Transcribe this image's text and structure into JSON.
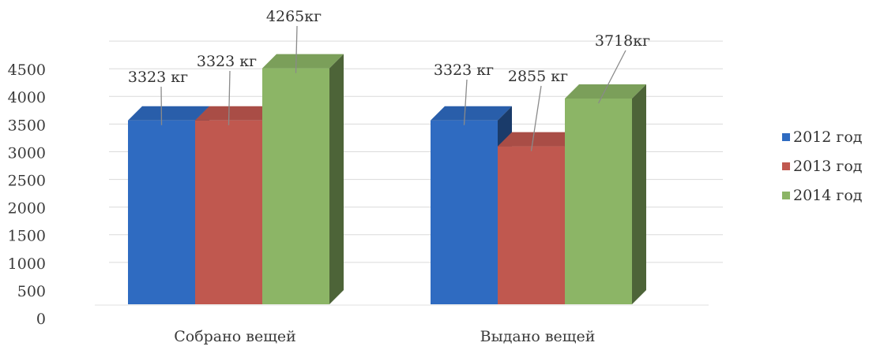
{
  "chart_data": {
    "type": "bar",
    "title": "",
    "xlabel": "",
    "ylabel": "",
    "ylim": [
      0,
      4500
    ],
    "yticks": [
      0,
      500,
      1000,
      1500,
      2000,
      2500,
      3000,
      3500,
      4000,
      4500
    ],
    "grid": true,
    "legend_position": "right",
    "style": "3d-clustered-column",
    "categories": [
      "Собрано вещей",
      "Выдано вещей"
    ],
    "series": [
      {
        "name": "2012 год",
        "color": "#2f6bc1",
        "values": [
          3323,
          3323
        ],
        "data_labels": [
          "3323 кг",
          "3323 кг"
        ]
      },
      {
        "name": "2013 год",
        "color": "#c0584f",
        "values": [
          3323,
          2855
        ],
        "data_labels": [
          "3323 кг",
          "2855 кг"
        ]
      },
      {
        "name": "2014 год",
        "color": "#8cb566",
        "values": [
          4265,
          3718
        ],
        "data_labels": [
          "4265кг",
          "3718кг"
        ]
      }
    ]
  }
}
